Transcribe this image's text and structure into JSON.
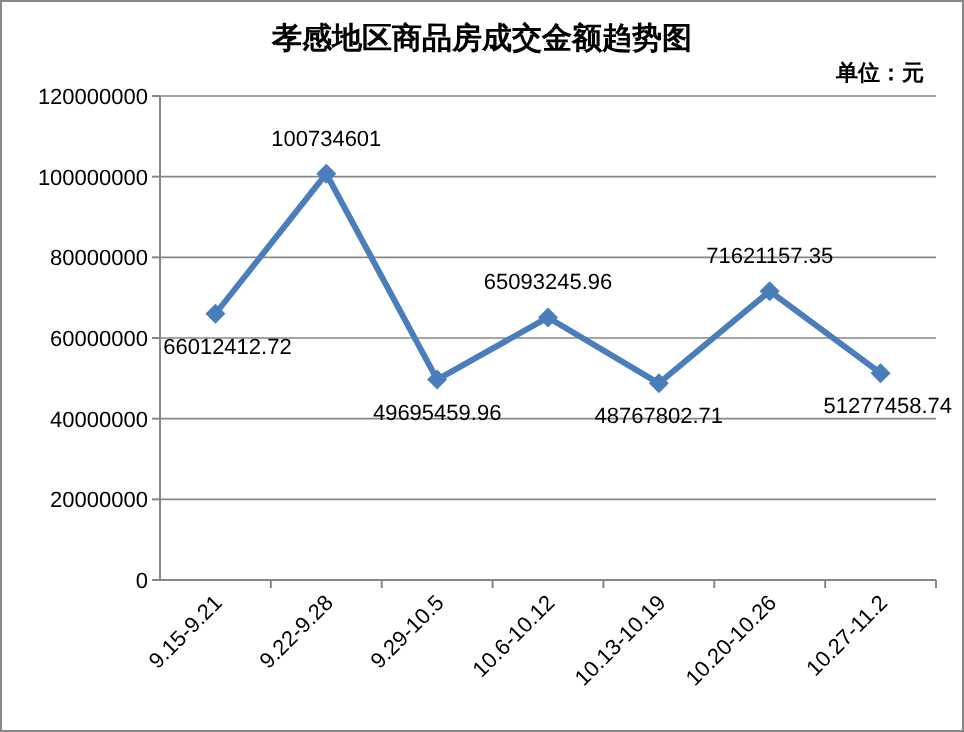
{
  "chart_data": {
    "type": "line",
    "title": "孝感地区商品房成交金额趋势图",
    "annotations": [
      "单位：元"
    ],
    "categories": [
      "9.15-9.21",
      "9.22-9.28",
      "9.29-10.5",
      "10.6-10.12",
      "10.13-10.19",
      "10.20-10.26",
      "10.27-11.2"
    ],
    "series": [
      {
        "color": "#4a7ebb",
        "values": [
          66012412.72,
          100734601,
          49695459.96,
          65093245.96,
          48767802.71,
          71621157.35,
          51277458.74
        ]
      }
    ],
    "ylim": [
      0,
      120000000
    ],
    "yticks": [
      0,
      20000000,
      40000000,
      60000000,
      80000000,
      100000000,
      120000000
    ],
    "grid": "y",
    "marker": "diamond",
    "line_style": "solid",
    "data_labels": true
  }
}
